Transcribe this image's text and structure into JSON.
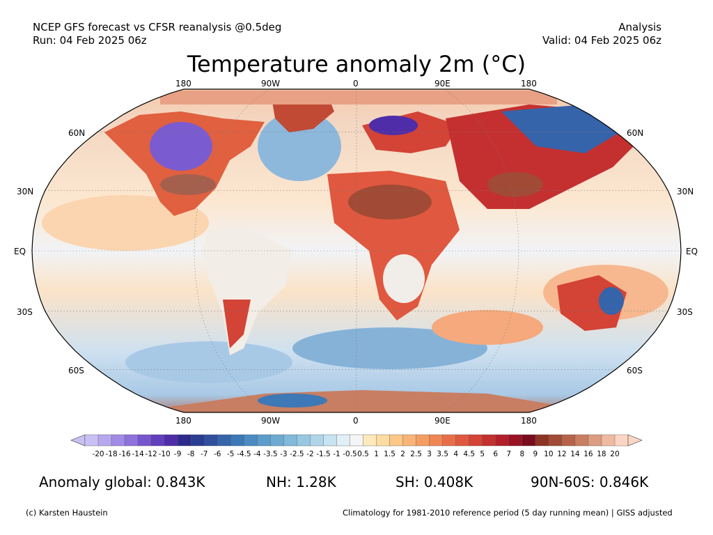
{
  "header": {
    "model_line": "NCEP GFS forecast vs CFSR reanalysis @0.5deg",
    "run_line": "Run: 04 Feb 2025 06z",
    "type_line": "Analysis",
    "valid_line": "Valid: 04 Feb 2025 06z"
  },
  "title": "Temperature anomaly 2m (°C)",
  "map": {
    "projection": "Robinson",
    "lon_labels_top": [
      "180",
      "90W",
      "0",
      "90E",
      "180"
    ],
    "lon_labels_bottom": [
      "180",
      "90W",
      "0",
      "90E",
      "180"
    ],
    "lat_labels_left": [
      "60N",
      "30N",
      "EQ",
      "30S",
      "60S"
    ],
    "lat_labels_right": [
      "60N",
      "30N",
      "EQ",
      "30S",
      "60S"
    ]
  },
  "colorbar": {
    "labels": [
      "-20",
      "-18",
      "-16",
      "-14",
      "-12",
      "-10",
      "-9",
      "-8",
      "-7",
      "-6",
      "-5",
      "-4.5",
      "-4",
      "-3.5",
      "-3",
      "-2.5",
      "-2",
      "-1.5",
      "-1",
      "-0.5",
      "0.5",
      "1",
      "1.5",
      "2",
      "2.5",
      "3",
      "3.5",
      "4",
      "4.5",
      "5",
      "6",
      "7",
      "8",
      "9",
      "10",
      "12",
      "14",
      "16",
      "18",
      "20"
    ],
    "colors": [
      "#c9c1f3",
      "#b6a7ee",
      "#a18be6",
      "#8d71dc",
      "#7756cd",
      "#623fbc",
      "#4f2da8",
      "#2c2a8a",
      "#2b3c93",
      "#2f509f",
      "#3664ab",
      "#3d78b7",
      "#4b8bc2",
      "#5c9ccb",
      "#6eaad2",
      "#82b9da",
      "#98c7e2",
      "#b0d5ea",
      "#c8e3f1",
      "#e1eff7",
      "#f5f5f5",
      "#fde9bc",
      "#fddca1",
      "#fbc888",
      "#f9b477",
      "#f59e64",
      "#f08654",
      "#e96e48",
      "#df583f",
      "#d34336",
      "#c4302f",
      "#b1202a",
      "#991324",
      "#7a0c1f",
      "#8d3324",
      "#a14a35",
      "#b5644a",
      "#c87e62",
      "#dc9c82",
      "#eebaa2",
      "#fbd5c5"
    ]
  },
  "stats": {
    "global": "Anomaly global: 0.843K",
    "nh": "NH: 1.28K",
    "sh": "SH: 0.408K",
    "arctic": "90N-60S: 0.846K"
  },
  "footer": {
    "credit": "(c) Karsten Haustein",
    "note": "Climatology for 1981-2010 reference period (5 day running mean) | GISS adjusted"
  }
}
